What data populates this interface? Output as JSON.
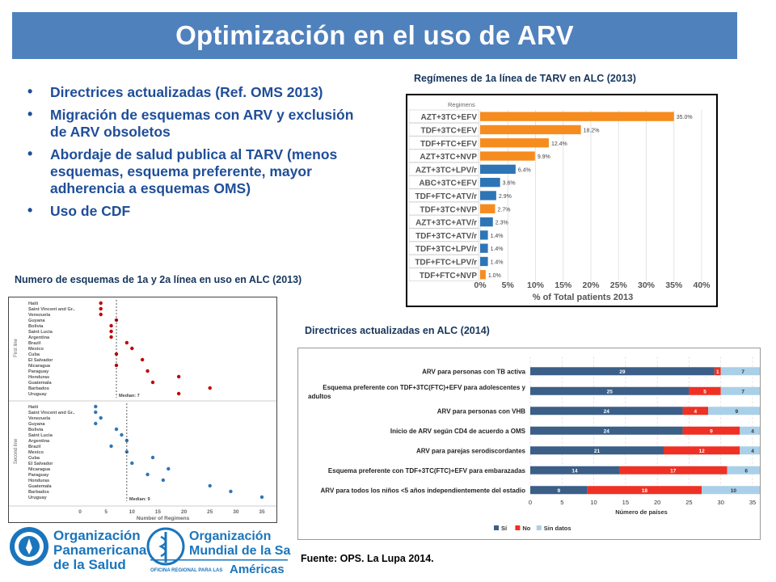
{
  "title": "Optimización en el uso de ARV",
  "bullets": [
    "Directrices actualizadas (Ref. OMS 2013)",
    "Migración de esquemas con ARV y exclusión de ARV obsoletos",
    "Abordaje de salud publica al TARV (menos esquemas, esquema preferente, mayor adherencia a esquemas OMS)",
    "Uso de CDF"
  ],
  "captions": {
    "regimens": "Regímenes de 1a línea de TARV en ALC (2013)",
    "schemes": "Numero de esquemas de 1a y 2a línea en uso en ALC (2013)",
    "guidelines": "Directrices actualizadas en ALC (2014)"
  },
  "source": "Fuente: OPS. La Lupa 2014.",
  "logos": {
    "paho": [
      "Organización",
      "Panamericana",
      "de la Salud"
    ],
    "who": [
      "Organización",
      "Mundial de la Salud"
    ],
    "who_sub_small": "OFICINA REGIONAL PARA LAS",
    "who_sub_big": "Américas"
  },
  "colors": {
    "title_bg": "#4f81bd",
    "orange": "#f68c1f",
    "blue": "#2e75b6",
    "red_dot": "#c00000",
    "blue_dot": "#2e75b6",
    "yes": "#3b5f87",
    "no": "#ee3124",
    "nodata": "#a9d0e8"
  },
  "chart_data": [
    {
      "type": "bar",
      "orientation": "horizontal",
      "title": "Regimens",
      "xlabel": "% of Total patients 2013",
      "xlim": [
        0,
        40
      ],
      "xticks": [
        "0%",
        "5%",
        "10%",
        "15%",
        "20%",
        "25%",
        "30%",
        "35%",
        "40%"
      ],
      "categories": [
        "AZT+3TC+EFV",
        "TDF+3TC+EFV",
        "TDF+FTC+EFV",
        "AZT+3TC+NVP",
        "AZT+3TC+LPV/r",
        "ABC+3TC+EFV",
        "TDF+FTC+ATV/r",
        "TDF+3TC+NVP",
        "AZT+3TC+ATV/r",
        "TDF+3TC+ATV/r",
        "TDF+3TC+LPV/r",
        "TDF+FTC+LPV/r",
        "TDF+FTC+NVP"
      ],
      "values": [
        35.0,
        18.2,
        12.4,
        9.9,
        6.4,
        3.6,
        2.9,
        2.7,
        2.3,
        1.4,
        1.4,
        1.4,
        1.0
      ],
      "labels": [
        "35.0%",
        "18.2%",
        "12.4%",
        "9.9%",
        "6.4%",
        "3.6%",
        "2.9%",
        "2.7%",
        "2.3%",
        "1.4%",
        "1.4%",
        "1.4%",
        "1.0%"
      ],
      "bar_colors": [
        "orange",
        "orange",
        "orange",
        "orange",
        "blue",
        "blue",
        "blue",
        "orange",
        "blue",
        "blue",
        "blue",
        "blue",
        "orange"
      ]
    },
    {
      "type": "scatter",
      "xlabel": "Number of Regimens",
      "xlim": [
        0,
        35
      ],
      "xticks": [
        0,
        5,
        10,
        15,
        20,
        25,
        30,
        35
      ],
      "panels": [
        {
          "name": "First line",
          "median_label": "Median: 7",
          "median": 7,
          "categories": [
            "Haiti",
            "Saint Vincent and Gr..",
            "Venezuela",
            "Guyana",
            "Bolivia",
            "Saint Lucia",
            "Argentina",
            "Brazil",
            "Mexico",
            "Cuba",
            "El Salvador",
            "Nicaragua",
            "Paraguay",
            "Honduras",
            "Guatemala",
            "Barbados",
            "Uruguay"
          ],
          "values": [
            4,
            4,
            4,
            7,
            6,
            6,
            6,
            9,
            10,
            7,
            12,
            7,
            13,
            19,
            14,
            25,
            19
          ]
        },
        {
          "name": "Second line",
          "median_label": "Median: 9",
          "median": 9,
          "categories": [
            "Haiti",
            "Saint Vincent and Gr..",
            "Venezuela",
            "Guyana",
            "Bolivia",
            "Saint Lucia",
            "Argentina",
            "Brazil",
            "Mexico",
            "Cuba",
            "El Salvador",
            "Nicaragua",
            "Paraguay",
            "Honduras",
            "Guatemala",
            "Barbados",
            "Uruguay"
          ],
          "values": [
            3,
            3,
            4,
            3,
            7,
            8,
            9,
            6,
            9,
            14,
            10,
            17,
            13,
            16,
            25,
            29,
            35
          ]
        }
      ]
    },
    {
      "type": "bar",
      "orientation": "horizontal",
      "stacked": true,
      "xlabel": "Número de países",
      "xlim": [
        0,
        35
      ],
      "xticks": [
        0,
        5,
        10,
        15,
        20,
        25,
        30,
        35
      ],
      "categories": [
        "ARV para personas con TB activa",
        "Esquema preferente con TDF+3TC(FTC)+EFV para adolescentes y adultos",
        "ARV para personas con VHB",
        "Inicio de ARV según CD4 de acuerdo a OMS",
        "ARV para parejas serodiscordantes",
        "Esquema preferente con TDF+3TC(FTC)+EFV para embarazadas",
        "ARV para todos los niños <5 años independientemente del estadio"
      ],
      "series": [
        {
          "name": "Sí",
          "values": [
            29,
            25,
            24,
            24,
            21,
            14,
            9
          ]
        },
        {
          "name": "No",
          "values": [
            1,
            5,
            4,
            9,
            12,
            17,
            18
          ]
        },
        {
          "name": "Sin datos",
          "values": [
            7,
            7,
            9,
            4,
            4,
            6,
            10
          ]
        }
      ]
    }
  ]
}
